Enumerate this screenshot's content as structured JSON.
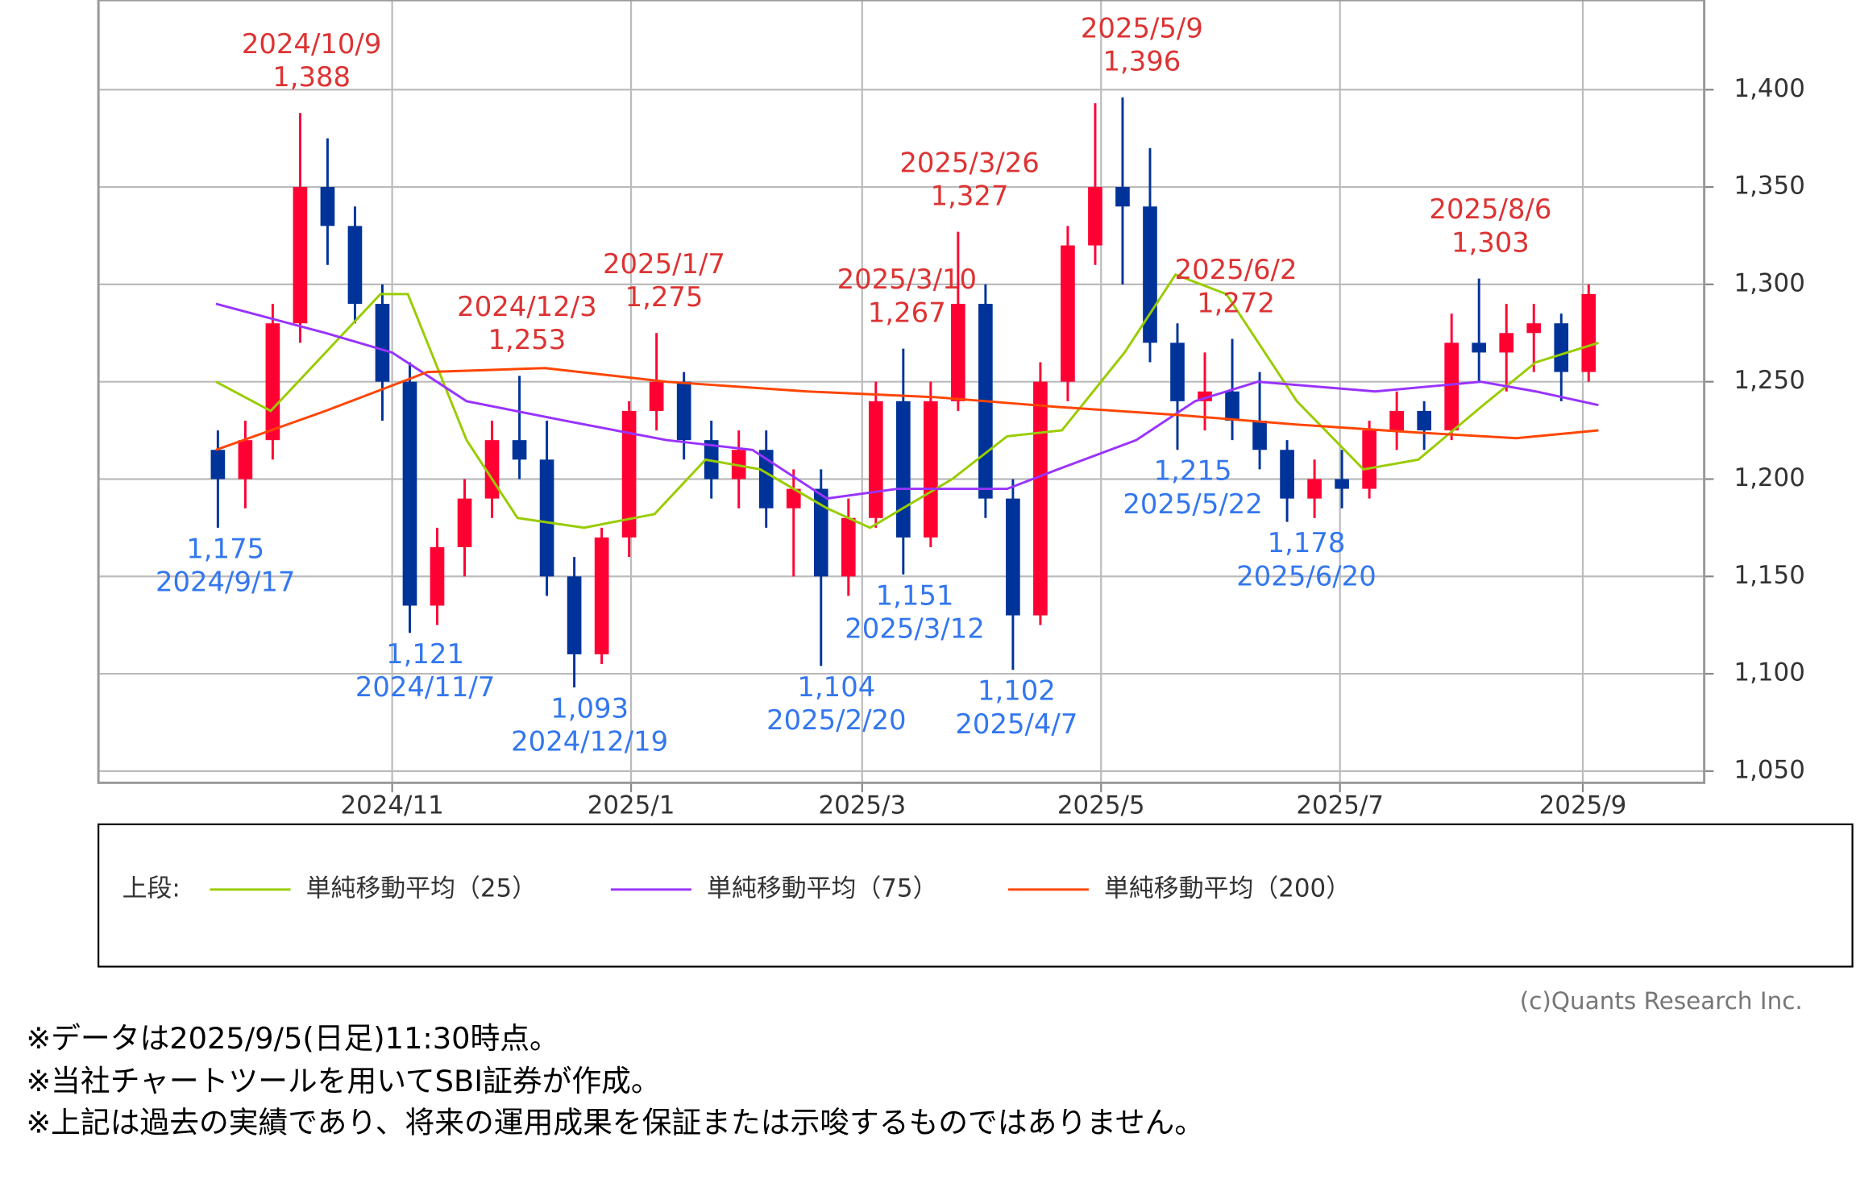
{
  "chart_data": {
    "type": "candlestick",
    "xlim": [
      "2024/8/18",
      "2025/10/2"
    ],
    "ylim": [
      1044,
      1446
    ],
    "xticks": [
      "2024/11",
      "2025/1",
      "2025/3",
      "2025/5",
      "2025/7",
      "2025/9"
    ],
    "yticks": [
      {
        "value": 1050,
        "label": "1,050"
      },
      {
        "value": 1100,
        "label": "1,100"
      },
      {
        "value": 1150,
        "label": "1,150"
      },
      {
        "value": 1200,
        "label": "1,200"
      },
      {
        "value": 1250,
        "label": "1,250"
      },
      {
        "value": 1300,
        "label": "1,300"
      },
      {
        "value": 1350,
        "label": "1,350"
      },
      {
        "value": 1400,
        "label": "1,400"
      }
    ],
    "grid": true,
    "up_color": "#ff0033",
    "down_color": "#003399",
    "x": [
      "2024/9/16",
      "2024/9/23",
      "2024/9/30",
      "2024/10/7",
      "2024/10/14",
      "2024/10/21",
      "2024/10/28",
      "2024/11/4",
      "2024/11/11",
      "2024/11/18",
      "2024/11/25",
      "2024/12/2",
      "2024/12/9",
      "2024/12/16",
      "2024/12/23",
      "2024/12/30",
      "2025/1/6",
      "2025/1/13",
      "2025/1/20",
      "2025/1/27",
      "2025/2/3",
      "2025/2/10",
      "2025/2/17",
      "2025/2/24",
      "2025/3/3",
      "2025/3/10",
      "2025/3/17",
      "2025/3/24",
      "2025/3/31",
      "2025/4/7",
      "2025/4/14",
      "2025/4/21",
      "2025/4/28",
      "2025/5/5",
      "2025/5/12",
      "2025/5/19",
      "2025/5/26",
      "2025/6/2",
      "2025/6/9",
      "2025/6/16",
      "2025/6/23",
      "2025/6/30",
      "2025/7/7",
      "2025/7/14",
      "2025/7/21",
      "2025/7/28",
      "2025/8/4",
      "2025/8/11",
      "2025/8/18",
      "2025/8/25",
      "2025/9/1"
    ],
    "open": [
      1215,
      1200,
      1220,
      1280,
      1350,
      1330,
      1290,
      1250,
      1135,
      1165,
      1190,
      1220,
      1210,
      1150,
      1110,
      1170,
      1235,
      1250,
      1220,
      1200,
      1215,
      1185,
      1195,
      1150,
      1180,
      1240,
      1170,
      1240,
      1290,
      1190,
      1130,
      1250,
      1320,
      1350,
      1340,
      1270,
      1240,
      1245,
      1230,
      1215,
      1190,
      1200,
      1195,
      1225,
      1235,
      1225,
      1270,
      1265,
      1275,
      1280,
      1255
    ],
    "high": [
      1225,
      1230,
      1290,
      1388,
      1375,
      1340,
      1300,
      1260,
      1175,
      1200,
      1230,
      1253,
      1230,
      1160,
      1175,
      1240,
      1275,
      1255,
      1230,
      1225,
      1225,
      1205,
      1205,
      1190,
      1250,
      1267,
      1250,
      1327,
      1300,
      1200,
      1260,
      1330,
      1393,
      1396,
      1370,
      1280,
      1265,
      1272,
      1255,
      1220,
      1210,
      1215,
      1230,
      1245,
      1240,
      1285,
      1303,
      1290,
      1290,
      1285,
      1300
    ],
    "low": [
      1175,
      1185,
      1210,
      1270,
      1310,
      1280,
      1230,
      1121,
      1125,
      1150,
      1180,
      1200,
      1140,
      1093,
      1105,
      1160,
      1225,
      1210,
      1190,
      1185,
      1175,
      1150,
      1104,
      1140,
      1175,
      1151,
      1165,
      1235,
      1180,
      1102,
      1125,
      1240,
      1310,
      1300,
      1260,
      1215,
      1225,
      1220,
      1205,
      1178,
      1180,
      1185,
      1190,
      1215,
      1215,
      1220,
      1250,
      1245,
      1255,
      1240,
      1250
    ],
    "close": [
      1200,
      1220,
      1280,
      1350,
      1330,
      1290,
      1250,
      1135,
      1165,
      1190,
      1220,
      1210,
      1150,
      1110,
      1170,
      1235,
      1250,
      1220,
      1200,
      1215,
      1185,
      1195,
      1150,
      1180,
      1240,
      1170,
      1240,
      1290,
      1190,
      1130,
      1250,
      1320,
      1350,
      1340,
      1270,
      1240,
      1245,
      1230,
      1215,
      1190,
      1200,
      1195,
      1225,
      1235,
      1225,
      1270,
      1265,
      1275,
      1280,
      1255,
      1295
    ],
    "series": [
      {
        "name": "単純移動平均（25）",
        "color": "#99cc00",
        "x": [
          "2024/9/17",
          "2024/10/1",
          "2024/10/15",
          "2024/10/29",
          "2024/11/5",
          "2024/11/20",
          "2024/12/3",
          "2024/12/20",
          "2025/1/7",
          "2025/1/20",
          "2025/2/3",
          "2025/2/20",
          "2025/3/3",
          "2025/3/24",
          "2025/4/7",
          "2025/4/21",
          "2025/5/7",
          "2025/5/20",
          "2025/6/2",
          "2025/6/20",
          "2025/7/7",
          "2025/7/21",
          "2025/8/6",
          "2025/8/20",
          "2025/9/5"
        ],
        "values": [
          1250,
          1235,
          1265,
          1295,
          1295,
          1220,
          1180,
          1175,
          1182,
          1210,
          1205,
          1185,
          1175,
          1200,
          1222,
          1225,
          1265,
          1305,
          1295,
          1240,
          1205,
          1210,
          1237,
          1260,
          1270
        ]
      },
      {
        "name": "単純移動平均（75）",
        "color": "#9933ff",
        "x": [
          "2024/9/17",
          "2024/10/15",
          "2024/11/1",
          "2024/11/20",
          "2024/12/15",
          "2025/1/10",
          "2025/2/1",
          "2025/2/20",
          "2025/3/10",
          "2025/4/7",
          "2025/4/20",
          "2025/5/10",
          "2025/5/25",
          "2025/6/10",
          "2025/7/10",
          "2025/8/6",
          "2025/8/20",
          "2025/9/5"
        ],
        "values": [
          1290,
          1275,
          1265,
          1240,
          1230,
          1220,
          1215,
          1190,
          1195,
          1195,
          1205,
          1220,
          1240,
          1250,
          1245,
          1250,
          1245,
          1238
        ]
      },
      {
        "name": "単純移動平均（200）",
        "color": "#ff4500",
        "x": [
          "2024/9/17",
          "2024/10/15",
          "2024/11/10",
          "2024/12/10",
          "2025/1/10",
          "2025/2/15",
          "2025/3/20",
          "2025/4/20",
          "2025/5/20",
          "2025/6/20",
          "2025/7/20",
          "2025/8/15",
          "2025/9/5"
        ],
        "values": [
          1215,
          1235,
          1255,
          1257,
          1250,
          1245,
          1242,
          1237,
          1233,
          1228,
          1224,
          1221,
          1225
        ]
      }
    ],
    "legend_prefix": "上段:",
    "annotations": [
      {
        "date": "2024/10/9",
        "value": 1388,
        "label": "1,388",
        "kind": "high",
        "color": "#dd3333"
      },
      {
        "date": "2024/12/3",
        "value": 1253,
        "label": "1,253",
        "kind": "high",
        "color": "#dd3333"
      },
      {
        "date": "2025/1/7",
        "value": 1275,
        "label": "1,275",
        "kind": "high",
        "color": "#dd3333"
      },
      {
        "date": "2025/3/10",
        "value": 1267,
        "label": "1,267",
        "kind": "high",
        "color": "#dd3333"
      },
      {
        "date": "2025/3/26",
        "value": 1327,
        "label": "1,327",
        "kind": "high",
        "color": "#dd3333"
      },
      {
        "date": "2025/5/9",
        "value": 1396,
        "label": "1,396",
        "kind": "high",
        "color": "#dd3333"
      },
      {
        "date": "2025/6/2",
        "value": 1272,
        "label": "1,272",
        "kind": "high",
        "color": "#dd3333"
      },
      {
        "date": "2025/8/6",
        "value": 1303,
        "label": "1,303",
        "kind": "high",
        "color": "#dd3333"
      },
      {
        "date": "2024/9/17",
        "value": 1175,
        "label": "1,175",
        "kind": "low",
        "color": "#3377ee"
      },
      {
        "date": "2024/11/7",
        "value": 1121,
        "label": "1,121",
        "kind": "low",
        "color": "#3377ee"
      },
      {
        "date": "2024/12/19",
        "value": 1093,
        "label": "1,093",
        "kind": "low",
        "color": "#3377ee"
      },
      {
        "date": "2025/2/20",
        "value": 1104,
        "label": "1,104",
        "kind": "low",
        "color": "#3377ee"
      },
      {
        "date": "2025/3/12",
        "value": 1151,
        "label": "1,151",
        "kind": "low",
        "color": "#3377ee"
      },
      {
        "date": "2025/4/7",
        "value": 1102,
        "label": "1,102",
        "kind": "low",
        "color": "#3377ee"
      },
      {
        "date": "2025/5/22",
        "value": 1215,
        "label": "1,215",
        "kind": "low",
        "color": "#3377ee"
      },
      {
        "date": "2025/6/20",
        "value": 1178,
        "label": "1,178",
        "kind": "low",
        "color": "#3377ee"
      }
    ]
  },
  "footer": {
    "copyright": "(c)Quants Research Inc.",
    "notes": [
      "※データは2025/9/5(日足)11:30時点。",
      "※当社チャートツールを用いてSBI証券が作成。",
      "※上記は過去の実績であり、将来の運用成果を保証または示唆するものではありません。"
    ]
  }
}
